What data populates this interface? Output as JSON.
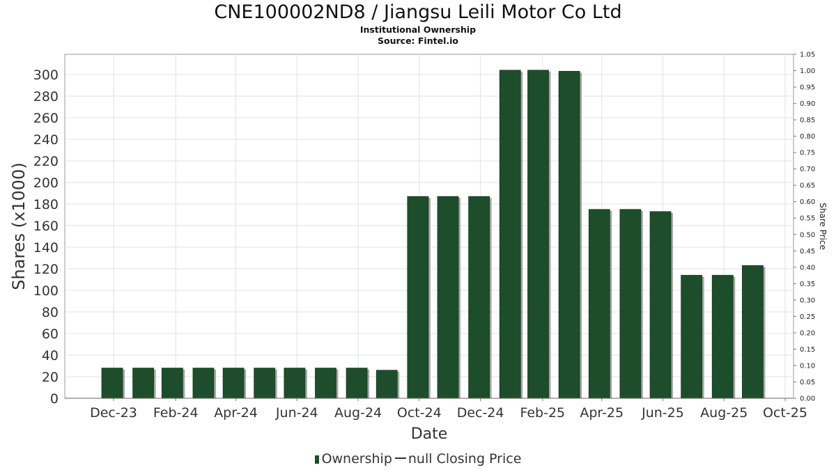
{
  "chart_data": {
    "type": "bar",
    "title": "CNE100002ND8 / Jiangsu Leili Motor Co Ltd",
    "subtitle": "Institutional Ownership",
    "source": "Source: Fintel.io",
    "xlabel": "Date",
    "ylabel": "Shares (x1000)",
    "y2label": "Share Price",
    "x_tick_labels": [
      "Dec-23",
      "Feb-24",
      "Apr-24",
      "Jun-24",
      "Aug-24",
      "Oct-24",
      "Dec-24",
      "Feb-25",
      "Apr-25",
      "Jun-25",
      "Aug-25",
      "Oct-25"
    ],
    "y_ticks": [
      0,
      20,
      40,
      60,
      80,
      100,
      120,
      140,
      160,
      180,
      200,
      220,
      240,
      260,
      280,
      300
    ],
    "y2_ticks": [
      "0.00",
      "0.05",
      "0.10",
      "0.15",
      "0.20",
      "0.25",
      "0.30",
      "0.35",
      "0.40",
      "0.45",
      "0.50",
      "0.55",
      "0.60",
      "0.65",
      "0.70",
      "0.75",
      "0.80",
      "0.85",
      "0.90",
      "0.95",
      "1.00",
      "1.05"
    ],
    "ylim": [
      0,
      320
    ],
    "y2lim": [
      0,
      1.05
    ],
    "x": [
      "2023-12-31",
      "2024-01-31",
      "2024-02-29",
      "2024-03-31",
      "2024-04-30",
      "2024-05-31",
      "2024-06-30",
      "2024-07-31",
      "2024-08-31",
      "2024-09-30",
      "2024-10-31",
      "2024-11-30",
      "2024-12-31",
      "2025-01-31",
      "2025-02-28",
      "2025-03-31",
      "2025-04-30",
      "2025-05-31",
      "2025-06-30",
      "2025-07-31",
      "2025-08-31",
      "2025-09-30"
    ],
    "series": [
      {
        "name": "Ownership",
        "values": [
          28,
          28,
          28,
          28,
          28,
          28,
          28,
          28,
          28,
          26,
          187,
          187,
          187,
          304,
          304,
          303,
          175,
          175,
          173,
          114,
          114,
          123
        ]
      }
    ],
    "grid": true,
    "legend_position": "bottom-center",
    "bar_color": "#1e4d2b",
    "grid_color": "#e2e2e2"
  },
  "legend": {
    "items": [
      {
        "label": "Ownership",
        "color": "#1e4d2b"
      },
      {
        "label": "null Closing Price",
        "color": "#333333"
      }
    ]
  }
}
